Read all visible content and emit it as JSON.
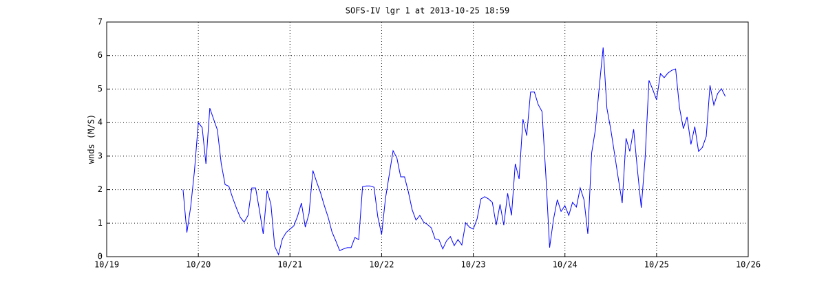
{
  "chart_data": {
    "type": "line",
    "title": "SOFS-IV lgr 1 at 2013-10-25 18:59",
    "y_label": "wnds (M/S)",
    "x": [
      19.833,
      19.875,
      19.917,
      19.958,
      20.0,
      20.042,
      20.083,
      20.125,
      20.167,
      20.208,
      20.25,
      20.292,
      20.333,
      20.375,
      20.417,
      20.458,
      20.5,
      20.542,
      20.583,
      20.625,
      20.667,
      20.708,
      20.75,
      20.792,
      20.833,
      20.875,
      20.917,
      20.958,
      21.0,
      21.042,
      21.083,
      21.125,
      21.167,
      21.208,
      21.25,
      21.292,
      21.333,
      21.375,
      21.417,
      21.458,
      21.5,
      21.542,
      21.583,
      21.625,
      21.667,
      21.708,
      21.75,
      21.792,
      21.833,
      21.875,
      21.917,
      21.958,
      22.0,
      22.042,
      22.083,
      22.125,
      22.167,
      22.208,
      22.25,
      22.292,
      22.333,
      22.375,
      22.417,
      22.458,
      22.5,
      22.542,
      22.583,
      22.625,
      22.667,
      22.708,
      22.75,
      22.792,
      22.833,
      22.875,
      22.917,
      22.958,
      23.0,
      23.042,
      23.083,
      23.125,
      23.167,
      23.208,
      23.25,
      23.292,
      23.333,
      23.375,
      23.417,
      23.458,
      23.5,
      23.542,
      23.583,
      23.625,
      23.667,
      23.708,
      23.75,
      23.792,
      23.833,
      23.875,
      23.917,
      23.958,
      24.0,
      24.042,
      24.083,
      24.125,
      24.167,
      24.208,
      24.25,
      24.292,
      24.333,
      24.375,
      24.417,
      24.458,
      24.5,
      24.542,
      24.583,
      24.625,
      24.667,
      24.708,
      24.75,
      24.792,
      24.833,
      24.875,
      24.917,
      24.958,
      25.0,
      25.042,
      25.083,
      25.125,
      25.167,
      25.208,
      25.25,
      25.292,
      25.333,
      25.375,
      25.417,
      25.458,
      25.5,
      25.542,
      25.583,
      25.625,
      25.667,
      25.708,
      25.75
    ],
    "series": [
      {
        "name": "wnds",
        "color": "#0000ff",
        "values": [
          2.0,
          0.72,
          1.5,
          2.57,
          4.0,
          3.85,
          2.77,
          4.43,
          4.1,
          3.78,
          2.77,
          2.15,
          2.1,
          1.75,
          1.44,
          1.17,
          1.03,
          1.23,
          2.05,
          2.05,
          1.38,
          0.68,
          1.97,
          1.56,
          0.31,
          0.06,
          0.53,
          0.72,
          0.82,
          0.92,
          1.21,
          1.6,
          0.88,
          1.29,
          2.57,
          2.22,
          1.91,
          1.52,
          1.17,
          0.74,
          0.47,
          0.18,
          0.23,
          0.27,
          0.27,
          0.57,
          0.51,
          2.09,
          2.11,
          2.11,
          2.07,
          1.19,
          0.66,
          1.74,
          2.44,
          3.16,
          2.94,
          2.38,
          2.38,
          1.93,
          1.4,
          1.09,
          1.23,
          1.03,
          0.96,
          0.86,
          0.53,
          0.51,
          0.23,
          0.47,
          0.6,
          0.33,
          0.51,
          0.35,
          1.01,
          0.88,
          0.82,
          1.13,
          1.72,
          1.79,
          1.72,
          1.62,
          0.94,
          1.56,
          0.94,
          1.89,
          1.23,
          2.77,
          2.32,
          4.1,
          3.61,
          4.91,
          4.91,
          4.54,
          4.33,
          2.42,
          0.27,
          1.11,
          1.7,
          1.35,
          1.52,
          1.23,
          1.62,
          1.48,
          2.05,
          1.7,
          0.68,
          3.1,
          3.8,
          5.07,
          6.24,
          4.43,
          3.8,
          3.06,
          2.32,
          1.6,
          3.53,
          3.14,
          3.8,
          2.57,
          1.46,
          2.94,
          5.26,
          4.99,
          4.68,
          5.46,
          5.34,
          5.48,
          5.56,
          5.6,
          4.45,
          3.82,
          4.17,
          3.35,
          3.88,
          3.14,
          3.26,
          3.59,
          5.11,
          4.52,
          4.87,
          5.01,
          4.78
        ]
      }
    ],
    "xlim": [
      19,
      26
    ],
    "xticks": [
      {
        "value": 19,
        "label": "10/19"
      },
      {
        "value": 20,
        "label": "10/20"
      },
      {
        "value": 21,
        "label": "10/21"
      },
      {
        "value": 22,
        "label": "10/22"
      },
      {
        "value": 23,
        "label": "10/23"
      },
      {
        "value": 24,
        "label": "10/24"
      },
      {
        "value": 25,
        "label": "10/25"
      },
      {
        "value": 26,
        "label": "10/26"
      }
    ],
    "ylim": [
      0,
      7
    ],
    "yticks": [
      0,
      1,
      2,
      3,
      4,
      5,
      6,
      7
    ],
    "grid": true
  }
}
